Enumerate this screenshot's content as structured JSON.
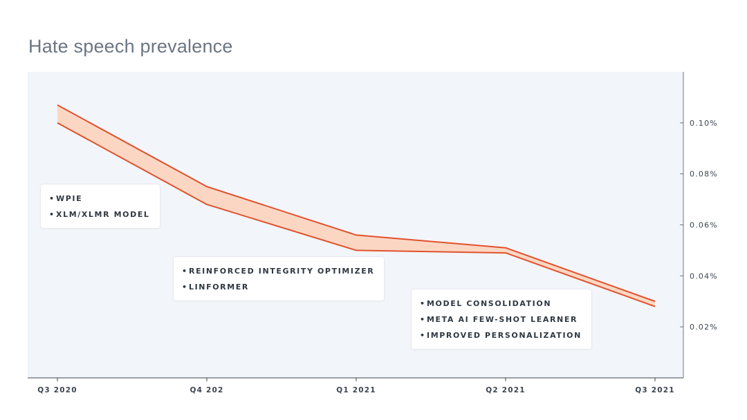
{
  "chart_data": {
    "type": "area",
    "title": "Hate speech prevalence",
    "categories": [
      "Q3 2020",
      "Q4 202",
      "Q1 2021",
      "Q2 2021",
      "Q3 2021"
    ],
    "series": [
      {
        "values": [
          0.107,
          0.075,
          0.056,
          0.051,
          0.03
        ]
      },
      {
        "values": [
          0.1,
          0.068,
          0.05,
          0.049,
          0.028
        ]
      }
    ],
    "y_ticks": [
      0.02,
      0.04,
      0.06,
      0.08,
      0.1
    ],
    "y_tick_labels": [
      "0.02%",
      "0.04%",
      "0.06%",
      "0.08%",
      "0.10%"
    ],
    "ylim": [
      0,
      0.12
    ],
    "y_axis_position": "right",
    "grid": false,
    "annotations": [
      {
        "at": "Q3 2020",
        "items": [
          "WPIE",
          "XLM/XLMR MODEL"
        ]
      },
      {
        "at": "Q4 202",
        "items": [
          "REINFORCED INTEGRITY OPTIMIZER",
          "LINFORMER"
        ]
      },
      {
        "at": "Q1 2021",
        "items": [
          "MODEL CONSOLIDATION",
          "META AI FEW-SHOT LEARNER",
          "IMPROVED PERSONALIZATION"
        ]
      }
    ],
    "colors": {
      "band_fill": "#fbd7c3",
      "line": "#e0512d",
      "plot_bg": "#f2f5f9"
    }
  }
}
